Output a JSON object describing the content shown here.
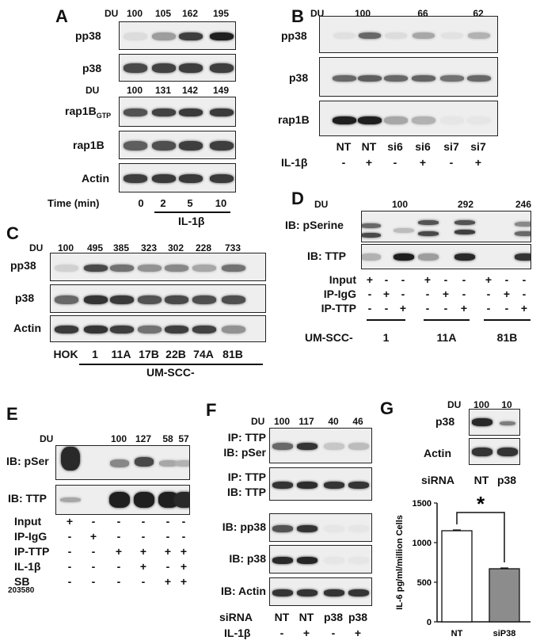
{
  "panels": {
    "A": {
      "label": "A",
      "du_label": "DU",
      "du_top": [
        "100",
        "105",
        "162",
        "195"
      ],
      "du_mid": [
        "100",
        "131",
        "142",
        "149"
      ],
      "rows": [
        "pp38",
        "p38",
        "rap1B",
        "rap1B",
        "Actin"
      ],
      "rap_gtp_sub": "GTP",
      "time_label": "Time (min)",
      "times": [
        "0",
        "2",
        "5",
        "10"
      ],
      "treatment": "IL-1β"
    },
    "B": {
      "label": "B",
      "du_label": "DU",
      "du": [
        "100",
        "66",
        "62"
      ],
      "rows": [
        "pp38",
        "p38",
        "rap1B"
      ],
      "lanes": [
        "NT",
        "NT",
        "si6",
        "si6",
        "si7",
        "si7"
      ],
      "il_label": "IL-1β",
      "il_signs": [
        "-",
        "+",
        "-",
        "+",
        "-",
        "+"
      ]
    },
    "C": {
      "label": "C",
      "du_label": "DU",
      "du": [
        "100",
        "495",
        "385",
        "323",
        "302",
        "228",
        "733"
      ],
      "rows": [
        "pp38",
        "p38",
        "Actin"
      ],
      "lanes": [
        "HOK",
        "1",
        "11A",
        "17B",
        "22B",
        "74A",
        "81B"
      ],
      "group": "UM-SCC-"
    },
    "D": {
      "label": "D",
      "du_label": "DU",
      "du": [
        "100",
        "292",
        "246"
      ],
      "rows": [
        "IB: pSerine",
        "IB: TTP"
      ],
      "conditions": [
        "Input",
        "IP-IgG",
        "IP-TTP"
      ],
      "signs": [
        [
          "+",
          "-",
          "-",
          "+",
          "-",
          "-",
          "+",
          "-",
          "-"
        ],
        [
          "-",
          "+",
          "-",
          "-",
          "+",
          "-",
          "-",
          "+",
          "-"
        ],
        [
          "-",
          "-",
          "+",
          "-",
          "-",
          "+",
          "-",
          "-",
          "+"
        ]
      ],
      "group_label": "UM-SCC-",
      "groups": [
        "1",
        "11A",
        "81B"
      ]
    },
    "E": {
      "label": "E",
      "du_label": "DU",
      "du": [
        "100",
        "127",
        "58",
        "57"
      ],
      "rows": [
        "IB: pSer",
        "IB: TTP"
      ],
      "conditions": [
        "Input",
        "IP-IgG",
        "IP-TTP",
        "IL-1β",
        "SB"
      ],
      "sb_sub": "203580",
      "signs": [
        [
          "+",
          "-",
          "-",
          "-",
          "-",
          "-"
        ],
        [
          "-",
          "+",
          "-",
          "-",
          "-",
          "-"
        ],
        [
          "-",
          "-",
          "+",
          "+",
          "+",
          "+"
        ],
        [
          "-",
          "-",
          "-",
          "+",
          "-",
          "+"
        ],
        [
          "-",
          "-",
          "-",
          "-",
          "+",
          "+"
        ]
      ]
    },
    "F": {
      "label": "F",
      "du_label": "DU",
      "du": [
        "100",
        "117",
        "40",
        "46"
      ],
      "rows": [
        [
          "IP: TTP",
          "IB: pSer"
        ],
        [
          "IP: TTP",
          "IB: TTP"
        ],
        [
          "IB: pp38"
        ],
        [
          "IB: p38"
        ],
        [
          "IB: Actin"
        ]
      ],
      "sirna_label": "siRNA",
      "lanes": [
        "NT",
        "NT",
        "p38",
        "p38"
      ],
      "il_label": "IL-1β",
      "il_signs": [
        "-",
        "+",
        "-",
        "+"
      ]
    },
    "G": {
      "label": "G",
      "du_label": "DU",
      "du": [
        "100",
        "10"
      ],
      "rows": [
        "p38",
        "Actin"
      ],
      "sirna_label": "siRNA",
      "lanes": [
        "NT",
        "p38"
      ],
      "significance": "*"
    }
  },
  "chart_data": {
    "type": "bar",
    "categories": [
      "NT",
      "siP38"
    ],
    "values": [
      1150,
      670
    ],
    "errors": [
      10,
      10
    ],
    "ylabel": "IL-6 pg/ml/million Cells",
    "ylim": [
      0,
      1500
    ],
    "yticks": [
      "0",
      "500",
      "1000",
      "1500"
    ],
    "bar_colors": [
      "#ffffff",
      "#8c8c8c"
    ]
  }
}
